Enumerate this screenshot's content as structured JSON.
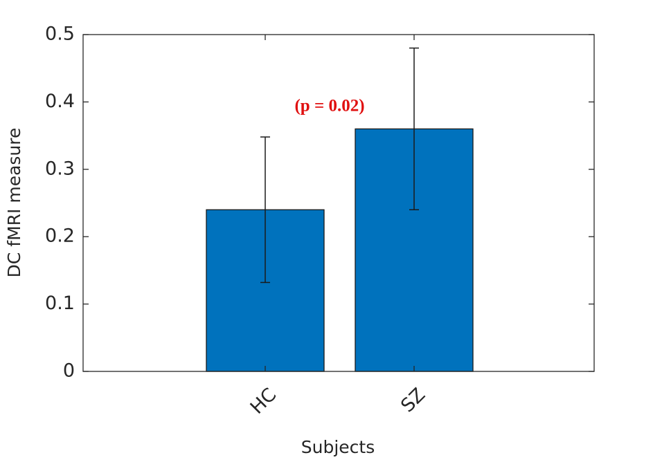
{
  "chart_data": {
    "type": "bar",
    "xlabel": "Subjects",
    "ylabel": "DC fMRI measure",
    "categories": [
      "HC",
      "SZ"
    ],
    "values": [
      0.24,
      0.36
    ],
    "errors": [
      0.108,
      0.12
    ],
    "color": "#0072bd",
    "ylim": [
      0,
      0.5
    ],
    "yticks": [
      0,
      0.1,
      0.2,
      0.3,
      0.4,
      0.5
    ],
    "annotation": "(p = 0.02)"
  }
}
